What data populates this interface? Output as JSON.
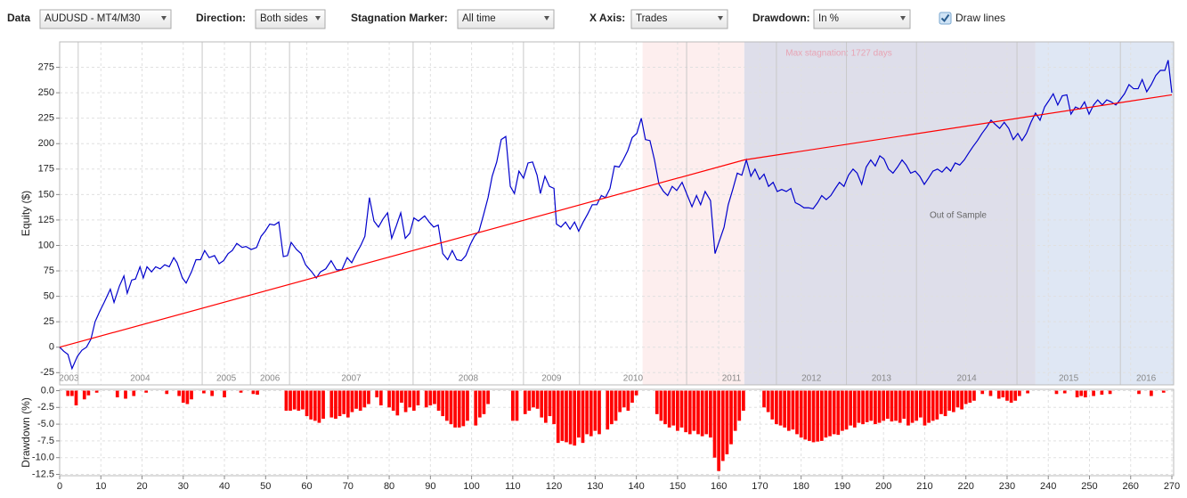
{
  "toolbar": {
    "data_label": "Data",
    "data_value": "AUDUSD - MT4/M30",
    "direction_label": "Direction:",
    "direction_value": "Both sides",
    "stagnation_label": "Stagnation Marker:",
    "stagnation_value": "All time",
    "xaxis_label": "X Axis:",
    "xaxis_value": "Trades",
    "drawdown_label": "Drawdown:",
    "drawdown_value": "In %",
    "draw_lines_label": "Draw lines",
    "draw_lines_checked": true
  },
  "chart_data": [
    {
      "type": "line",
      "ylabel": "Equity ($)",
      "xlim": [
        0,
        270
      ],
      "ylim": [
        -37,
        300
      ],
      "yticks": [
        -25,
        0,
        25,
        50,
        75,
        100,
        125,
        150,
        175,
        200,
        225,
        250,
        275
      ],
      "xticks": [
        0,
        10,
        20,
        30,
        40,
        50,
        60,
        70,
        80,
        90,
        100,
        110,
        120,
        130,
        140,
        150,
        160,
        170,
        180,
        190,
        200,
        210,
        220,
        230,
        240,
        250,
        260,
        270
      ],
      "grid": true,
      "regions": [
        {
          "start": 141.5,
          "end": 166.2,
          "color": "#fdeeee"
        },
        {
          "start": 166.2,
          "end": 236.9,
          "color": "#dedeea"
        },
        {
          "start": 236.9,
          "end": 270,
          "color": "#dfe7f4"
        }
      ],
      "annotations": [
        {
          "text": "Max stagnation: 1727 days",
          "color": "#e8a4b4"
        },
        {
          "text": "Out of Sample",
          "color": "#666666"
        }
      ],
      "years": [
        "2003",
        "2004",
        "2005",
        "2006",
        "2007",
        "2008",
        "2009",
        "2010",
        "2011",
        "2012",
        "2013",
        "2014",
        "2015",
        "2016"
      ],
      "year_starts": [
        0,
        4.5,
        34.6,
        46.3,
        55.8,
        85.8,
        112.6,
        126.2,
        152.2,
        174,
        191,
        208,
        232.4,
        257.5
      ],
      "series": [
        {
          "color": "#0000cc",
          "x": [
            0,
            1,
            2,
            3,
            4.3,
            5.4,
            6.5,
            7.6,
            8.6,
            9.7,
            10.8,
            12.3,
            13.2,
            14.5,
            15.6,
            16.4,
            17.5,
            18.4,
            19.5,
            20.3,
            21.2,
            22.3,
            23.3,
            24.4,
            25.5,
            26.6,
            27.7,
            28.5,
            29.8,
            30.7,
            32,
            33.1,
            34.2,
            35.2,
            36.3,
            37.6,
            38.7,
            39.8,
            40.9,
            41.9,
            43,
            44.3,
            45.2,
            46.5,
            47.8,
            48.9,
            49.9,
            51,
            52.1,
            53.2,
            54.3,
            55.3,
            56.2,
            57.5,
            58.6,
            59.7,
            61.2,
            62.3,
            63.3,
            64.6,
            65.9,
            67.2,
            68.5,
            69.8,
            70.9,
            72,
            73.1,
            74.1,
            75.2,
            76.3,
            77.4,
            78.5,
            79.6,
            80.6,
            81.7,
            82.8,
            83.9,
            85,
            86,
            87.1,
            88.6,
            89.7,
            90.8,
            91.9,
            93,
            94.2,
            95.3,
            96.4,
            97.5,
            98.6,
            99.7,
            100.7,
            101.8,
            102.9,
            104,
            105,
            106.1,
            107.2,
            108.3,
            109.4,
            110.4,
            111.5,
            112.6,
            113.7,
            114.8,
            115.9,
            116.7,
            117.8,
            118.9,
            120,
            120.6,
            121.7,
            122.8,
            123.9,
            125,
            126,
            127.1,
            128.2,
            129.3,
            130.4,
            131.5,
            132.5,
            133.6,
            134.7,
            135.8,
            136.8,
            137.9,
            139,
            140.1,
            141.2,
            142.2,
            143.3,
            144.4,
            145.5,
            146.6,
            147.6,
            148.7,
            149.8,
            151.1,
            152.4,
            153.5,
            154.6,
            155.6,
            156.7,
            158,
            159.1,
            160.2,
            161.3,
            162.3,
            163.4,
            164.5,
            165.6,
            166.7,
            167.8,
            168.8,
            169.9,
            171,
            172.1,
            173.2,
            174.2,
            175.3,
            176.4,
            177.5,
            178.6,
            179.6,
            180.7,
            181.8,
            182.9,
            184,
            185,
            186.1,
            187.2,
            188.3,
            189.3,
            190.4,
            191.5,
            192.6,
            193.6,
            194.7,
            195.8,
            196.9,
            198,
            199.1,
            200.1,
            201.2,
            202.3,
            203.4,
            204.5,
            205.5,
            206.6,
            207.7,
            208.8,
            209.9,
            210.9,
            212,
            213.1,
            214.2,
            215.3,
            216.3,
            217.4,
            218.5,
            219.6,
            220.7,
            221.7,
            222.8,
            223.9,
            225,
            226.1,
            227.1,
            228.2,
            229.3,
            230.4,
            231.5,
            232.6,
            233.6,
            234.7,
            235.8,
            236.9,
            238,
            239.1,
            240.1,
            241.2,
            242.3,
            243.4,
            244.5,
            245.5,
            246.6,
            247.7,
            248.8,
            249.9,
            251,
            252,
            253.1,
            254.2,
            255.3,
            256.4,
            257.4,
            258.5,
            259.6,
            260.7,
            261.8,
            262.8,
            263.9,
            265,
            266.1,
            267.2,
            268.3,
            269.1,
            270
          ],
          "values": [
            0,
            -4,
            -7,
            -21,
            -9,
            -3,
            0,
            8,
            25,
            35,
            44,
            57,
            44,
            60,
            70,
            53,
            66,
            67,
            79,
            68,
            79,
            74,
            79,
            77,
            81,
            79,
            88,
            83,
            68,
            63,
            74,
            86,
            86,
            95,
            88,
            90,
            82,
            85,
            92,
            95,
            102,
            98,
            99,
            96,
            98,
            109,
            114,
            121,
            120,
            123,
            89,
            90,
            103,
            96,
            92,
            81,
            74,
            68,
            74,
            77,
            85,
            76,
            76,
            88,
            83,
            92,
            100,
            109,
            147,
            124,
            118,
            126,
            132,
            107,
            119,
            132,
            107,
            112,
            127,
            124,
            129,
            123,
            118,
            120,
            92,
            86,
            95,
            86,
            85,
            90,
            101,
            109,
            114,
            130,
            147,
            168,
            182,
            204,
            207,
            158,
            151,
            173,
            166,
            181,
            182,
            169,
            151,
            168,
            158,
            156,
            121,
            118,
            123,
            116,
            123,
            114,
            123,
            131,
            140,
            140,
            149,
            147,
            156,
            178,
            177,
            184,
            193,
            206,
            210,
            225,
            204,
            203,
            184,
            160,
            153,
            149,
            158,
            154,
            162,
            149,
            138,
            149,
            140,
            153,
            144,
            92,
            105,
            118,
            140,
            155,
            171,
            169,
            184,
            168,
            175,
            165,
            170,
            158,
            162,
            153,
            155,
            153,
            156,
            142,
            140,
            137,
            137,
            136,
            142,
            149,
            145,
            149,
            156,
            162,
            158,
            169,
            175,
            171,
            160,
            177,
            184,
            178,
            188,
            185,
            175,
            171,
            177,
            184,
            179,
            171,
            173,
            168,
            160,
            166,
            173,
            175,
            172,
            177,
            173,
            181,
            179,
            184,
            191,
            197,
            203,
            210,
            216,
            223,
            219,
            215,
            221,
            215,
            204,
            210,
            203,
            210,
            221,
            230,
            223,
            236,
            242,
            249,
            238,
            247,
            248,
            229,
            236,
            234,
            241,
            229,
            238,
            243,
            238,
            243,
            241,
            238,
            243,
            249,
            258,
            254,
            254,
            263,
            251,
            258,
            267,
            272,
            272,
            282,
            250
          ]
        },
        {
          "color": "#ff0000",
          "x": [
            0,
            166.2,
            270
          ],
          "values": [
            0,
            184,
            248
          ]
        }
      ]
    },
    {
      "type": "bar",
      "ylabel": "Drawdown (%)",
      "color": "#ff0000",
      "xlim": [
        0,
        270
      ],
      "ylim": [
        -12.7,
        0.2
      ],
      "grid": true,
      "yticks": [
        {
          "value": 0,
          "label": "0.0"
        },
        -2.5,
        {
          "value": -5,
          "label": "-5.0"
        },
        -7.5,
        {
          "value": -10,
          "label": "-10.0"
        },
        -12.5
      ],
      "xticks": [
        0,
        10,
        20,
        30,
        40,
        50,
        60,
        70,
        80,
        90,
        100,
        110,
        120,
        130,
        140,
        150,
        160,
        170,
        180,
        190,
        200,
        210,
        220,
        230,
        240,
        250,
        260,
        270
      ],
      "x": [
        2,
        3,
        4,
        6,
        7,
        9,
        14,
        16,
        18,
        21,
        26,
        29,
        30,
        31,
        32,
        35,
        37,
        40,
        44,
        47,
        48,
        55,
        56,
        57,
        58,
        59,
        60,
        61,
        62,
        63,
        64,
        66,
        67,
        68,
        69,
        70,
        71,
        72,
        73,
        74,
        75,
        77,
        78,
        80,
        81,
        82,
        83,
        84,
        85,
        86,
        87,
        89,
        90,
        91,
        92,
        93,
        94,
        95,
        96,
        97,
        98,
        99,
        101,
        102,
        103,
        104,
        110,
        111,
        113,
        114,
        115,
        116,
        117,
        118,
        119,
        120,
        121,
        122,
        123,
        124,
        125,
        126,
        127,
        128,
        129,
        130,
        131,
        133,
        134,
        135,
        136,
        137,
        138,
        139,
        140,
        145,
        146,
        147,
        148,
        149,
        150,
        151,
        152,
        153,
        154,
        155,
        156,
        157,
        158,
        159,
        160,
        161,
        162,
        163,
        164,
        165,
        166,
        171,
        172,
        173,
        174,
        175,
        176,
        177,
        178,
        179,
        180,
        181,
        182,
        183,
        184,
        185,
        186,
        187,
        188,
        189,
        190,
        191,
        192,
        193,
        194,
        195,
        196,
        197,
        198,
        199,
        200,
        201,
        202,
        203,
        204,
        205,
        206,
        207,
        208,
        209,
        210,
        211,
        212,
        213,
        214,
        215,
        216,
        217,
        218,
        219,
        220,
        221,
        222,
        224,
        226,
        228,
        229,
        230,
        231,
        232,
        233,
        235,
        242,
        244,
        247,
        248,
        249,
        251,
        253,
        255,
        262,
        265,
        268
      ],
      "values": [
        -0.8,
        -0.8,
        -2.2,
        -1.3,
        -0.7,
        -0.3,
        -1.0,
        -1.2,
        -0.8,
        -0.3,
        -0.5,
        -0.8,
        -1.8,
        -2.0,
        -1.3,
        -0.4,
        -0.8,
        -1.0,
        -0.3,
        -0.5,
        -0.6,
        -3.0,
        -3.0,
        -2.8,
        -3.0,
        -2.8,
        -3.8,
        -4.3,
        -4.5,
        -4.8,
        -4.2,
        -4.0,
        -4.2,
        -3.8,
        -3.5,
        -4.0,
        -3.2,
        -2.7,
        -3.0,
        -2.5,
        -2.0,
        -1.0,
        -2.2,
        -2.5,
        -3.0,
        -3.7,
        -1.8,
        -3.2,
        -2.5,
        -3.0,
        -2.2,
        -2.5,
        -2.2,
        -2.0,
        -3.0,
        -3.8,
        -4.5,
        -5.0,
        -5.5,
        -5.5,
        -5.3,
        -4.5,
        -5.2,
        -4.0,
        -3.5,
        -2.0,
        -4.5,
        -4.5,
        -3.5,
        -3.0,
        -2.5,
        -2.7,
        -4.0,
        -4.8,
        -3.8,
        -5.0,
        -7.8,
        -7.5,
        -7.7,
        -8.0,
        -8.2,
        -7.0,
        -7.8,
        -6.5,
        -6.8,
        -6.0,
        -6.5,
        -5.8,
        -5.0,
        -4.5,
        -3.2,
        -2.5,
        -3.0,
        -1.8,
        -0.7,
        -3.5,
        -4.5,
        -5.0,
        -5.5,
        -5.2,
        -6.0,
        -5.5,
        -6.2,
        -6.5,
        -6.0,
        -6.5,
        -6.8,
        -6.5,
        -7.0,
        -10.0,
        -12.0,
        -10.5,
        -9.5,
        -8.0,
        -6.0,
        -4.5,
        -3.0,
        -2.5,
        -3.2,
        -4.3,
        -5.0,
        -5.2,
        -5.5,
        -6.0,
        -5.8,
        -6.5,
        -7.0,
        -7.3,
        -7.5,
        -7.7,
        -7.6,
        -7.5,
        -7.0,
        -6.8,
        -6.5,
        -6.6,
        -6.0,
        -5.8,
        -5.2,
        -5.5,
        -4.8,
        -5.0,
        -4.7,
        -4.5,
        -5.0,
        -4.8,
        -4.5,
        -4.2,
        -4.6,
        -4.5,
        -4.8,
        -4.2,
        -5.2,
        -4.8,
        -4.5,
        -4.0,
        -5.2,
        -4.8,
        -4.5,
        -4.3,
        -3.5,
        -3.8,
        -3.0,
        -3.2,
        -2.5,
        -2.8,
        -2.0,
        -1.8,
        -1.5,
        -0.5,
        -0.8,
        -1.2,
        -1.0,
        -1.5,
        -1.8,
        -1.5,
        -0.8,
        -0.4,
        -0.5,
        -0.4,
        -1.0,
        -0.8,
        -1.0,
        -0.8,
        -0.6,
        -0.5,
        -0.5,
        -0.8,
        -0.3
      ]
    }
  ]
}
